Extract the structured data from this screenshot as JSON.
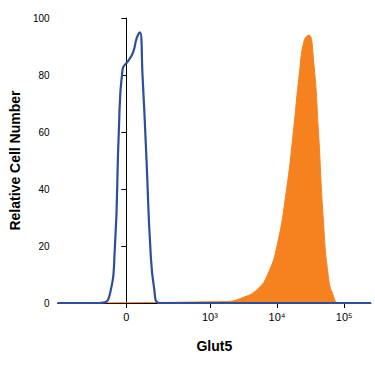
{
  "chart_data": {
    "type": "line",
    "xlabel": "Glut5",
    "ylabel": "Relative Cell Number",
    "xlim": [
      -600,
      250000
    ],
    "xticks": [
      0,
      {
        "value": 1000,
        "label": "10³"
      },
      {
        "value": 10000,
        "label": "10⁴"
      },
      {
        "value": 100000,
        "label": "10⁵"
      }
    ],
    "ylim": [
      0,
      100
    ],
    "yticks": [
      0,
      20,
      40,
      60,
      80,
      100
    ],
    "grid": false,
    "series": [
      {
        "type": "line",
        "color": "#2b4f9c",
        "x": [
          -600,
          -122,
          -72,
          -46,
          -30,
          -15,
          8,
          27,
          42,
          55,
          67,
          86,
          105,
          127,
          158,
          250000
        ],
        "values": [
          0,
          0,
          2,
          20,
          60,
          82,
          85,
          88,
          93,
          95,
          80,
          50,
          20,
          5,
          0,
          0
        ]
      },
      {
        "type": "area",
        "color": "#f5821f",
        "x": [
          -600,
          1650,
          3180,
          5220,
          7260,
          10000,
          13900,
          17500,
          21400,
          25300,
          29800,
          35000,
          41400,
          48600,
          57500,
          67600,
          85100,
          250000
        ],
        "values": [
          0,
          0.5,
          2,
          5,
          10,
          20,
          40,
          60,
          80,
          92,
          94,
          85,
          60,
          30,
          10,
          3,
          0,
          0
        ]
      }
    ]
  }
}
